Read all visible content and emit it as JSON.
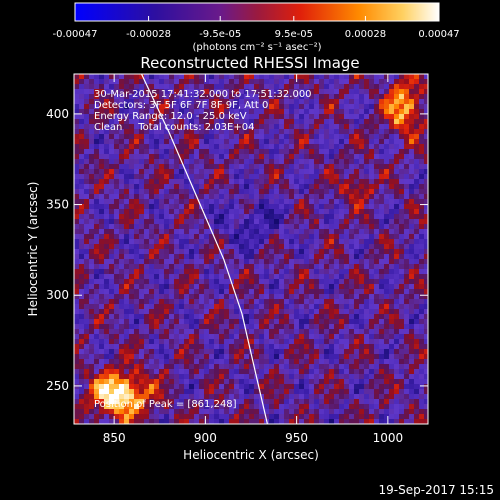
{
  "colorbar": {
    "tick_labels": [
      "-0.00047",
      "-0.00028",
      "-9.5e-05",
      "9.5e-05",
      "0.00028",
      "0.00047"
    ],
    "tick_values": [
      -0.00047,
      -0.00028,
      -9.5e-05,
      9.5e-05,
      0.00028,
      0.00047
    ],
    "range": [
      -0.00047,
      0.00047
    ],
    "unit_label": "(photons cm⁻² s⁻¹ asec⁻²)",
    "colors": [
      "#0000ff",
      "#3b0f8c",
      "#7a1e6e",
      "#e0200a",
      "#ff8a00",
      "#ffe58a",
      "#ffffff"
    ]
  },
  "chart_data": {
    "type": "heatmap",
    "title": "Reconstructed RHESSI Image",
    "xlabel": "Heliocentric X (arcsec)",
    "ylabel": "Heliocentric Y (arcsec)",
    "xlim": [
      828,
      1022
    ],
    "ylim": [
      229,
      422
    ],
    "x_ticks": [
      850,
      900,
      950,
      1000
    ],
    "y_ticks": [
      250,
      300,
      350,
      400
    ],
    "x_tick_labels": [
      "850",
      "900",
      "950",
      "1000"
    ],
    "y_tick_labels": [
      "250",
      "300",
      "350",
      "400"
    ],
    "limb_curve": [
      [
        865,
        422
      ],
      [
        880,
        390
      ],
      [
        895,
        355
      ],
      [
        910,
        320
      ],
      [
        920,
        290
      ],
      [
        928,
        255
      ],
      [
        934,
        229
      ]
    ],
    "peak": {
      "x": 861,
      "y": 248
    },
    "annotations": [
      "30-Mar-2015 17:41:32.000 to 17:51:32.000",
      "Detectors: 3F 5F 6F 7F 8F 9F, Att 0",
      "Energy Range: 12.0 - 25.0 keV",
      "Clean     Total counts: 2.03E+04"
    ],
    "peak_label": "Position of Peak = [861,248]"
  },
  "footer": {
    "date": "19-Sep-2017 15:15"
  }
}
